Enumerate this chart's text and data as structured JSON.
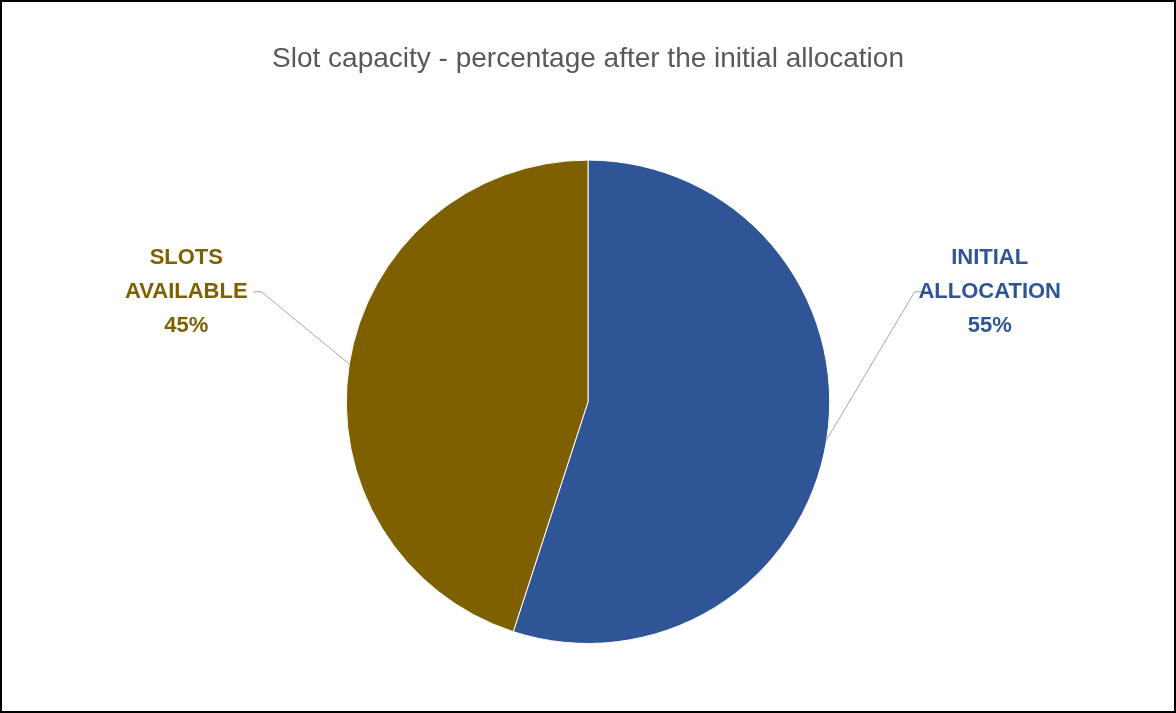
{
  "chart_data": {
    "type": "pie",
    "title": "Slot capacity - percentage after the initial allocation",
    "categories": [
      "INITIAL ALLOCATION",
      "SLOTS AVAILABLE"
    ],
    "values": [
      55,
      45
    ],
    "colors": [
      "#2f5597",
      "#7f6000"
    ],
    "value_labels": [
      "55%",
      "45%"
    ],
    "legend": false
  }
}
